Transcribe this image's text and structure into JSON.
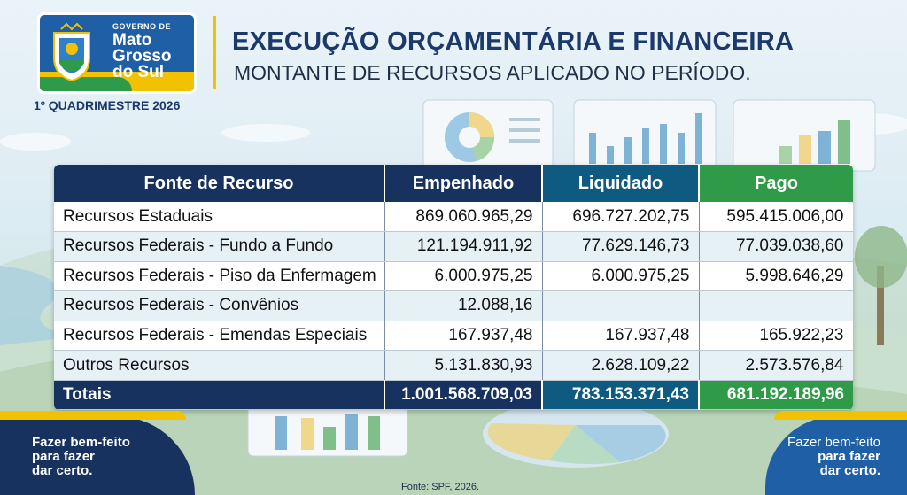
{
  "header": {
    "gov_small": "GOVERNO DE",
    "gov_name_1": "Mato",
    "gov_name_2": "Grosso",
    "gov_name_3": "do Sul",
    "period": "1º QUADRIMESTRE 2026",
    "title": "EXECUÇÃO ORÇAMENTÁRIA E FINANCEIRA",
    "subtitle": "MONTANTE DE RECURSOS APLICADO NO PERÍODO."
  },
  "table": {
    "columns": [
      "Fonte de Recurso",
      "Empenhado",
      "Liquidado",
      "Pago"
    ],
    "rows": [
      [
        "Recursos Estaduais",
        "869.060.965,29",
        "696.727.202,75",
        "595.415.006,00"
      ],
      [
        "Recursos Federais - Fundo a Fundo",
        "121.194.911,92",
        "77.629.146,73",
        "77.039.038,60"
      ],
      [
        "Recursos Federais - Piso da Enfermagem",
        "6.000.975,25",
        "6.000.975,25",
        "5.998.646,29"
      ],
      [
        "Recursos Federais - Convênios",
        "12.088,16",
        "",
        ""
      ],
      [
        "Recursos Federais - Emendas Especiais",
        "167.937,48",
        "167.937,48",
        "165.922,23"
      ],
      [
        "Outros Recursos",
        "5.131.830,93",
        "2.628.109,22",
        "2.573.576,84"
      ]
    ],
    "totals": [
      "Totais",
      "1.001.568.709,03",
      "783.153.371,43",
      "681.192.189,96"
    ]
  },
  "footer": {
    "left_slogan_1": "Fazer bem-feito",
    "left_slogan_2": "para fazer",
    "left_slogan_3": "dar certo.",
    "right_slogan_1": "Fazer bem-feito",
    "right_slogan_2": "para fazer",
    "right_slogan_3": "dar certo.",
    "source": "Fonte: SPF, 2026."
  },
  "colors": {
    "navy": "#17325e",
    "teal": "#0f5a80",
    "green": "#2f9a48",
    "yellow": "#f2c200",
    "blue": "#1f5fa6"
  },
  "icons": [
    "coat-of-arms-icon",
    "pie-chart-illustration",
    "bar-chart-illustration"
  ]
}
